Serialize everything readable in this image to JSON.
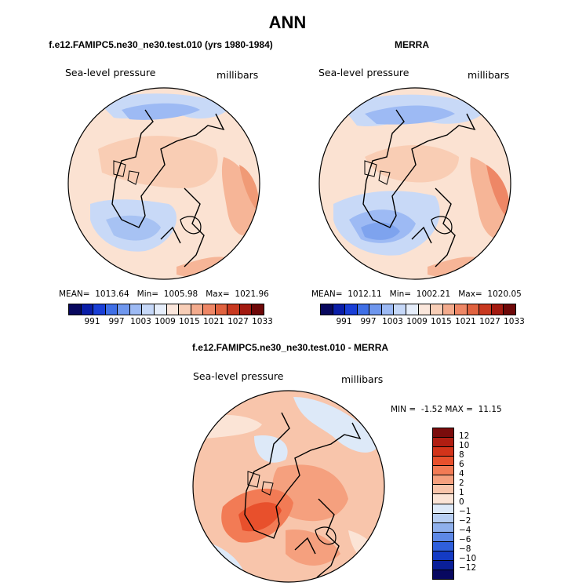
{
  "title": "ANN",
  "panels": {
    "model": {
      "title": "f.e12.FAMIPC5.ne30_ne30.test.010 (yrs 1980-1984)",
      "left_label": "Sea-level pressure",
      "right_label": "millibars",
      "mean_label": "MEAN=",
      "mean": "1013.64",
      "min_label": "Min=",
      "min": "1005.98",
      "max_label": "Max=",
      "max": "1021.96"
    },
    "obs": {
      "title": "MERRA",
      "left_label": "Sea-level pressure",
      "right_label": "millibars",
      "mean_label": "MEAN=",
      "mean": "1012.11",
      "min_label": "Min=",
      "min": "1002.21",
      "max_label": "Max=",
      "max": "1020.05"
    },
    "diff": {
      "title": "f.e12.FAMIPC5.ne30_ne30.test.010 - MERRA",
      "left_label": "Sea-level pressure",
      "right_label": "millibars",
      "min_label": "MIN =",
      "min": "-1.52",
      "max_label": "MAX =",
      "max": "11.15"
    }
  },
  "colorbar_abs": {
    "ticks": [
      "991",
      "997",
      "1003",
      "1009",
      "1015",
      "1021",
      "1027",
      "1033"
    ],
    "colors": [
      "#08085e",
      "#0a1ea8",
      "#1a3fd6",
      "#3f6fe6",
      "#6f97ee",
      "#9dbaf4",
      "#c6d8f8",
      "#e6eefb",
      "#fbe7dc",
      "#f8ceb7",
      "#f3ab8d",
      "#ee8766",
      "#e0623f",
      "#c8381f",
      "#a31a10",
      "#6e0808"
    ]
  },
  "colorbar_diff": {
    "ticks": [
      "12",
      "10",
      "8",
      "6",
      "4",
      "2",
      "1",
      "0",
      "−1",
      "−2",
      "−4",
      "−6",
      "−8",
      "−10",
      "−12"
    ],
    "colors": [
      "#7a0c0c",
      "#b01e12",
      "#d2341a",
      "#e8502c",
      "#f27b55",
      "#f5a07e",
      "#f8c5ab",
      "#fbe4d6",
      "#dde9f8",
      "#b8cff3",
      "#8fb0ec",
      "#5d88e6",
      "#2f5fdc",
      "#143bc4",
      "#0a1f98",
      "#080860"
    ]
  }
}
